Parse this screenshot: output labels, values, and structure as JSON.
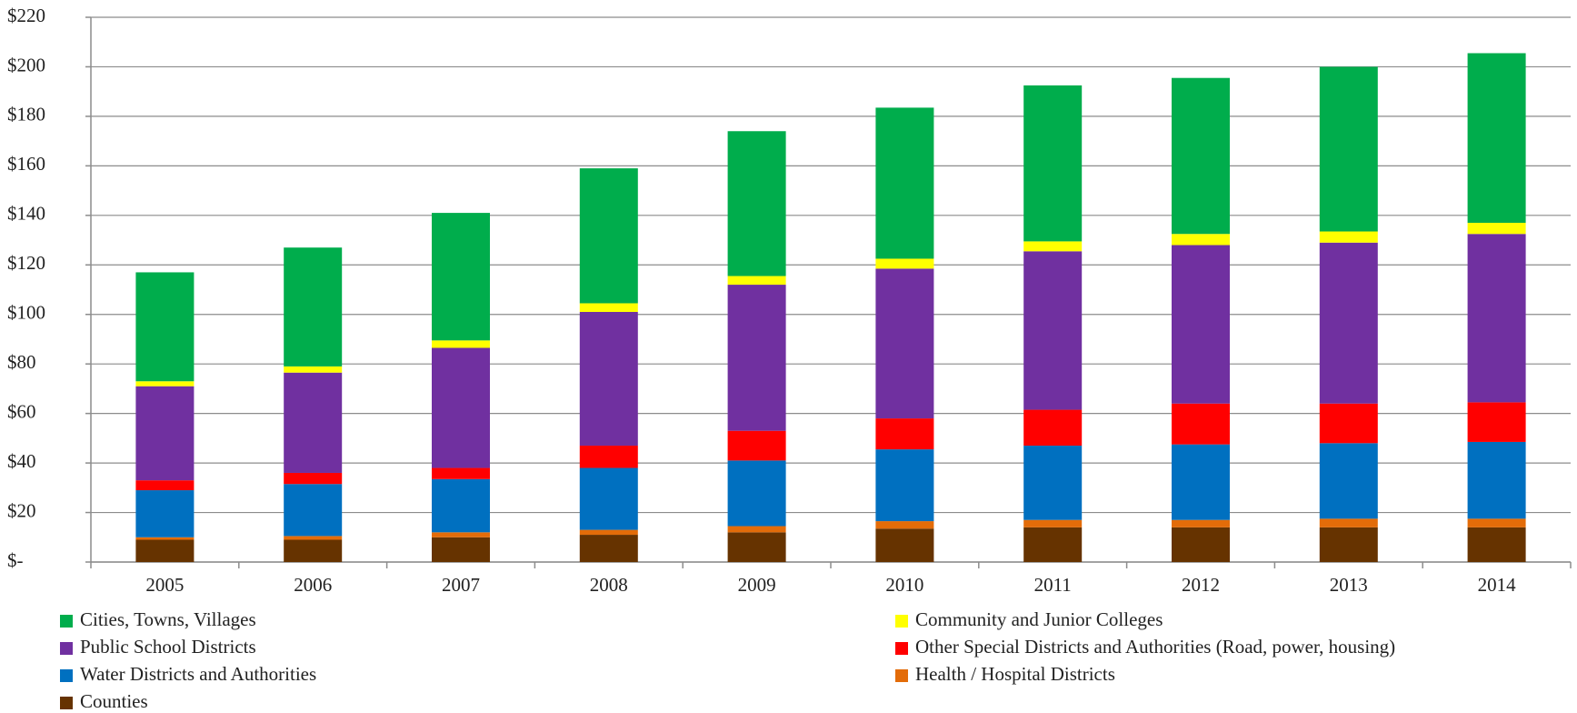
{
  "chart_data": {
    "type": "bar",
    "stacked": true,
    "categories": [
      "2005",
      "2006",
      "2007",
      "2008",
      "2009",
      "2010",
      "2011",
      "2012",
      "2013",
      "2014"
    ],
    "series": [
      {
        "name": "Cities, Towns, Villages",
        "color": "#00ad4c",
        "values": [
          44,
          48,
          51.5,
          54.5,
          58.5,
          61,
          63,
          63,
          66.5,
          68.5
        ]
      },
      {
        "name": "Community and Junior Colleges",
        "color": "#ffff00",
        "values": [
          2,
          2.5,
          3,
          3.5,
          3.5,
          4,
          4,
          4.5,
          4.5,
          4.5
        ]
      },
      {
        "name": "Public School Districts",
        "color": "#7030a0",
        "values": [
          38,
          40.5,
          48.5,
          54,
          59,
          60.5,
          64,
          64,
          65,
          68
        ]
      },
      {
        "name": "Other Special Districts and Authorities (Road, power, housing)",
        "color": "#ff0000",
        "values": [
          4,
          4.5,
          4.5,
          9,
          12,
          12.5,
          14.5,
          16.5,
          16,
          16
        ]
      },
      {
        "name": "Water Districts and Authorities",
        "color": "#0070c0",
        "values": [
          19,
          21,
          21.5,
          25,
          26.5,
          29,
          30,
          30.5,
          30.5,
          31
        ]
      },
      {
        "name": "Health / Hospital Districts",
        "color": "#e36c09",
        "values": [
          1,
          1.5,
          2,
          2,
          2.5,
          3,
          3,
          3,
          3.5,
          3.5
        ]
      },
      {
        "name": "Counties",
        "color": "#663300",
        "values": [
          9,
          9,
          10,
          11,
          12,
          13.5,
          14,
          14,
          14,
          14
        ]
      }
    ],
    "ylim": [
      0,
      220
    ],
    "yticks": [
      {
        "value": 0,
        "label": "$-"
      },
      {
        "value": 20,
        "label": "$20"
      },
      {
        "value": 40,
        "label": "$40"
      },
      {
        "value": 60,
        "label": "$60"
      },
      {
        "value": 80,
        "label": "$80"
      },
      {
        "value": 100,
        "label": "$100"
      },
      {
        "value": 120,
        "label": "$120"
      },
      {
        "value": 140,
        "label": "$140"
      },
      {
        "value": 160,
        "label": "$160"
      },
      {
        "value": 180,
        "label": "$180"
      },
      {
        "value": 200,
        "label": "$200"
      },
      {
        "value": 220,
        "label": "$220"
      }
    ],
    "grid": true,
    "legend": "bottom"
  }
}
